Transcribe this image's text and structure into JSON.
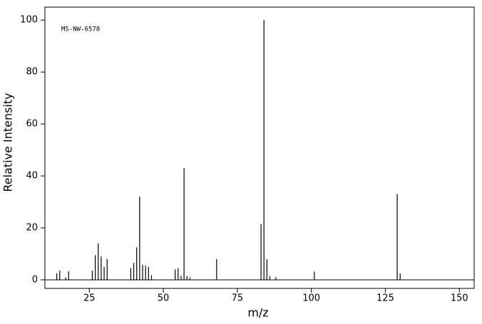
{
  "chart_data": {
    "type": "stem",
    "annotation": "MS-NW-6578",
    "xlabel": "m/z",
    "ylabel": "Relative Intensity",
    "color": "#000000",
    "x": [
      14,
      15,
      17,
      18,
      26,
      27,
      28,
      29,
      30,
      31,
      39,
      40,
      41,
      42,
      43,
      44,
      45,
      46,
      54,
      55,
      56,
      57,
      58,
      59,
      68,
      83,
      84,
      85,
      86,
      88,
      101,
      129,
      130
    ],
    "values": [
      2.5,
      3.6,
      1,
      3.3,
      3.5,
      9.5,
      14,
      9,
      5,
      8,
      4.5,
      6.5,
      12.5,
      32,
      5.8,
      5.5,
      5,
      1.8,
      4,
      4.5,
      1.5,
      43,
      1.5,
      1,
      8,
      21.5,
      100,
      8,
      1.5,
      1,
      3.2,
      33,
      2.5
    ],
    "xlim": [
      10,
      155
    ],
    "xticks": [
      25,
      50,
      75,
      100,
      125,
      150
    ],
    "ylim": [
      -3.3,
      105
    ],
    "yticks": [
      0,
      20,
      40,
      60,
      80,
      100
    ]
  }
}
